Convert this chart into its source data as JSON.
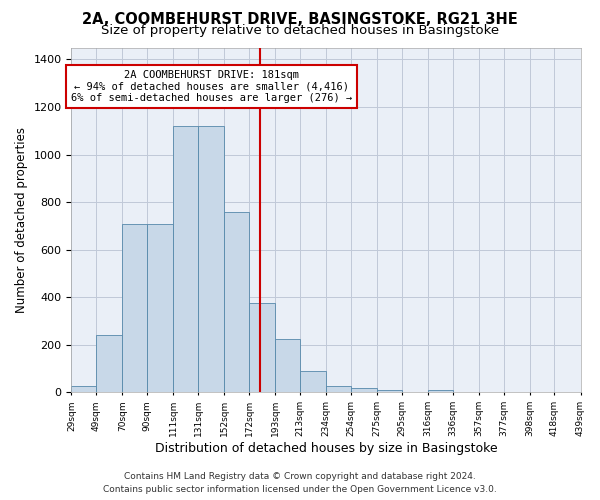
{
  "title": "2A, COOMBEHURST DRIVE, BASINGSTOKE, RG21 3HE",
  "subtitle": "Size of property relative to detached houses in Basingstoke",
  "xlabel": "Distribution of detached houses by size in Basingstoke",
  "ylabel": "Number of detached properties",
  "bin_edges": [
    29,
    49,
    70,
    90,
    111,
    131,
    152,
    172,
    193,
    213,
    234,
    254,
    275,
    295,
    316,
    336,
    357,
    377,
    398,
    418,
    439
  ],
  "bar_heights": [
    25,
    240,
    710,
    710,
    1120,
    1120,
    760,
    375,
    225,
    90,
    28,
    20,
    12,
    0,
    12,
    0,
    0,
    0,
    0,
    0
  ],
  "bar_color": "#c8d8e8",
  "bar_edge_color": "#5588aa",
  "grid_color": "#c0c8d8",
  "background_color": "#eaeff7",
  "red_line_x": 181,
  "annotation_title": "2A COOMBEHURST DRIVE: 181sqm",
  "annotation_line1": "← 94% of detached houses are smaller (4,416)",
  "annotation_line2": "6% of semi-detached houses are larger (276) →",
  "annotation_box_color": "#ffffff",
  "annotation_box_edge": "#cc0000",
  "red_line_color": "#cc0000",
  "footer_line1": "Contains HM Land Registry data © Crown copyright and database right 2024.",
  "footer_line2": "Contains public sector information licensed under the Open Government Licence v3.0.",
  "tick_labels": [
    "29sqm",
    "49sqm",
    "70sqm",
    "90sqm",
    "111sqm",
    "131sqm",
    "152sqm",
    "172sqm",
    "193sqm",
    "213sqm",
    "234sqm",
    "254sqm",
    "275sqm",
    "295sqm",
    "316sqm",
    "336sqm",
    "357sqm",
    "377sqm",
    "398sqm",
    "418sqm",
    "439sqm"
  ],
  "ylim": [
    0,
    1450
  ],
  "title_fontsize": 10.5,
  "subtitle_fontsize": 9.5,
  "ylabel_fontsize": 8.5,
  "xlabel_fontsize": 9,
  "tick_fontsize": 6.5,
  "ytick_fontsize": 8,
  "footer_fontsize": 6.5,
  "annotation_fontsize": 7.5
}
